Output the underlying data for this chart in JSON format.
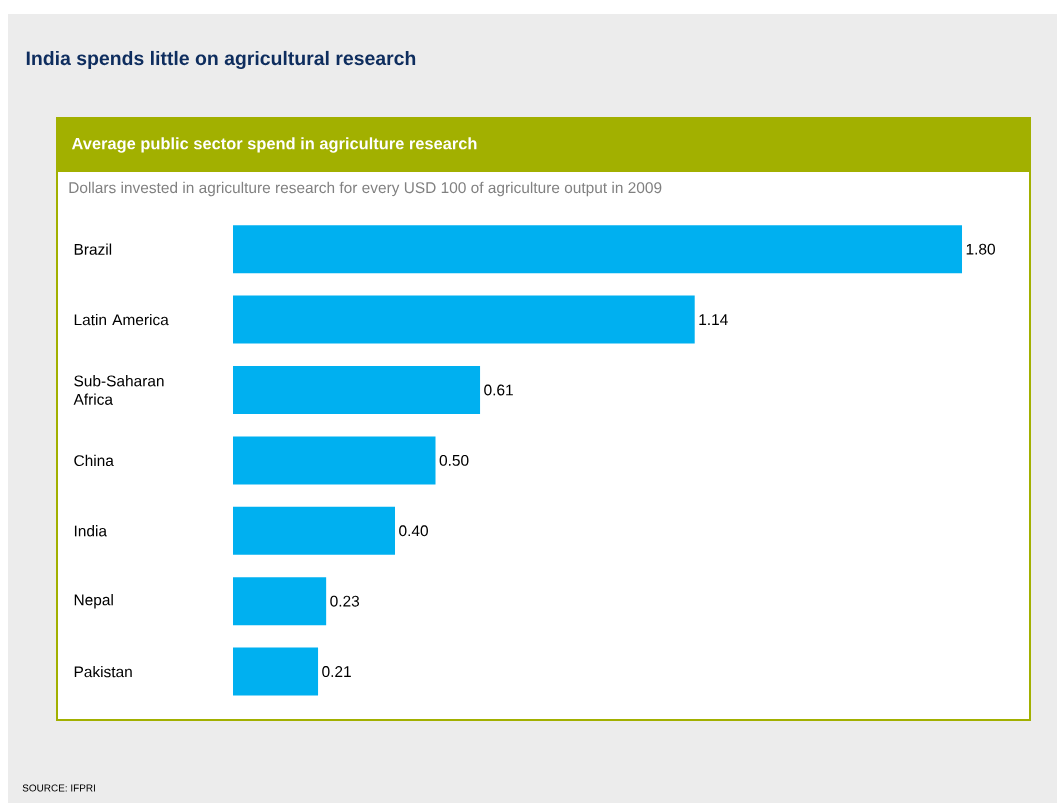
{
  "chart_data": {
    "type": "bar",
    "orientation": "horizontal",
    "title": "India spends little on agricultural research",
    "subtitle": "Average public sector spend in agriculture research",
    "annotations": [
      "Dollars invested in agriculture research for every USD 100 of agriculture output in 2009",
      "SOURCE: IFPRI"
    ],
    "categories": [
      "Brazil",
      "Latin America",
      "Sub-Saharan Africa",
      "China",
      "India",
      "Nepal",
      "Pakistan"
    ],
    "values": [
      1.8,
      1.14,
      0.61,
      0.5,
      0.4,
      0.23,
      0.21
    ],
    "value_labels": [
      "1.80",
      "1.14",
      "0.61",
      "0.50",
      "0.40",
      "0.23",
      "0.21"
    ],
    "color": "#00b0f0"
  }
}
